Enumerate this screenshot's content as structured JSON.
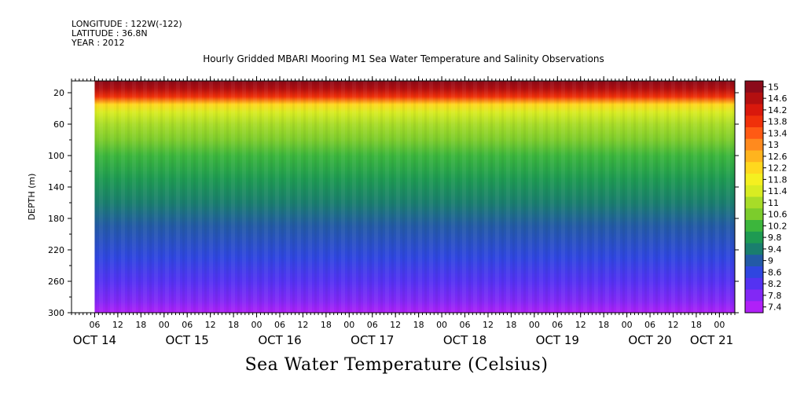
{
  "meta": {
    "longitude": "LONGITUDE : 122W(-122)",
    "latitude": "LATITUDE : 36.8N",
    "year": "YEAR : 2012"
  },
  "plot_title": "Hourly Gridded MBARI Mooring M1 Sea Water Temperature and Salinity Observations",
  "bottom_title": "Sea Water Temperature (Celsius)",
  "chart_data": {
    "type": "heatmap",
    "title": "Hourly Gridded MBARI Mooring M1 Sea Water Temperature and Salinity Observations",
    "xlabel": "",
    "ylabel": "DEPTH (m)",
    "colorbar_label": "Sea Water Temperature (Celsius)",
    "y_range": [
      5,
      300
    ],
    "y_inverted": true,
    "y_ticks": [
      20,
      60,
      100,
      140,
      180,
      220,
      260,
      300
    ],
    "x_range_hours": [
      0,
      172
    ],
    "data_start_hour": 6,
    "x_hour_ticks": [
      "06",
      "12",
      "18",
      "00",
      "06",
      "12",
      "18",
      "00",
      "06",
      "12",
      "18",
      "00",
      "06",
      "12",
      "18",
      "00",
      "06",
      "12",
      "18",
      "00",
      "06",
      "12",
      "18",
      "00",
      "06",
      "12",
      "18",
      "00",
      "06",
      "12",
      "18",
      "00"
    ],
    "x_day_labels": [
      {
        "label": "OCT 14",
        "hour": 6
      },
      {
        "label": "OCT 15",
        "hour": 30
      },
      {
        "label": "OCT 16",
        "hour": 54
      },
      {
        "label": "OCT 17",
        "hour": 78
      },
      {
        "label": "OCT 18",
        "hour": 102
      },
      {
        "label": "OCT 19",
        "hour": 126
      },
      {
        "label": "OCT 20",
        "hour": 150
      },
      {
        "label": "OCT 21",
        "hour": 166
      }
    ],
    "color_levels": [
      15,
      14.6,
      14.2,
      13.8,
      13.4,
      13,
      12.6,
      12.2,
      11.8,
      11.4,
      11,
      10.6,
      10.2,
      9.8,
      9.4,
      9,
      8.6,
      8.2,
      7.8,
      7.4
    ],
    "level_colors": [
      "#8b0a1a",
      "#b30f10",
      "#d9180c",
      "#f0300a",
      "#ff5a14",
      "#ff8a1e",
      "#ffb41e",
      "#ffd81e",
      "#f5f020",
      "#d8ec22",
      "#a8dc28",
      "#7ccc2c",
      "#3cb63c",
      "#1e9a52",
      "#1a7e6e",
      "#235aa6",
      "#2f46e0",
      "#5432f2",
      "#8228f5",
      "#b020f8"
    ],
    "temperature_profile": [
      {
        "depth": 5,
        "temp": 15
      },
      {
        "depth": 15,
        "temp": 14.6
      },
      {
        "depth": 25,
        "temp": 13.8
      },
      {
        "depth": 35,
        "temp": 12.2
      },
      {
        "depth": 45,
        "temp": 11.4
      },
      {
        "depth": 60,
        "temp": 11
      },
      {
        "depth": 80,
        "temp": 10.6
      },
      {
        "depth": 100,
        "temp": 10.2
      },
      {
        "depth": 130,
        "temp": 9.8
      },
      {
        "depth": 160,
        "temp": 9.4
      },
      {
        "depth": 190,
        "temp": 9
      },
      {
        "depth": 230,
        "temp": 8.6
      },
      {
        "depth": 260,
        "temp": 8.2
      },
      {
        "depth": 285,
        "temp": 7.8
      },
      {
        "depth": 300,
        "temp": 7.4
      }
    ]
  }
}
